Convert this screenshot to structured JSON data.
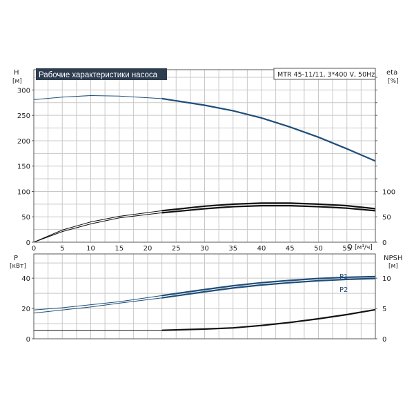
{
  "chart_data": [
    {
      "type": "line",
      "title": "Рабочие характеристики насоса",
      "info_box": "MTR 45-11/11, 3*400 V, 50Hz",
      "x_label": "Q",
      "x_unit": "[м³/ч]",
      "xlim": [
        0,
        60
      ],
      "x_ticks": [
        0,
        5,
        10,
        15,
        20,
        25,
        30,
        35,
        40,
        45,
        50,
        55
      ],
      "y_left_label": "H",
      "y_left_unit": "[м]",
      "ylim_left": [
        0,
        340
      ],
      "y_left_ticks": [
        0,
        50,
        100,
        150,
        200,
        250,
        300
      ],
      "y_right_label": "eta",
      "y_right_unit": "[%]",
      "ylim_right": [
        0,
        340
      ],
      "y_right_ticks": [
        0,
        50,
        100
      ],
      "grid": true,
      "series": [
        {
          "axis": "left",
          "color": "#1f4e79",
          "x": [
            0,
            5,
            10,
            15,
            22.5,
            30,
            35,
            40,
            45,
            50,
            55,
            60
          ],
          "y": [
            281,
            286,
            289,
            288,
            283,
            270,
            259,
            245,
            227,
            207,
            184,
            160
          ]
        },
        {
          "axis": "right",
          "color": "#111111",
          "x": [
            0,
            5,
            10,
            15,
            22.5,
            30,
            35,
            40,
            45,
            50,
            55,
            60
          ],
          "y": [
            0,
            24,
            40,
            51,
            62,
            71,
            75,
            77,
            77,
            75,
            72,
            66
          ]
        },
        {
          "axis": "right",
          "color": "#111111",
          "x": [
            0,
            5,
            10,
            15,
            22.5,
            30,
            35,
            40,
            45,
            50,
            55,
            60
          ],
          "y": [
            0,
            21,
            36,
            48,
            58,
            66,
            70,
            72,
            72,
            70,
            67,
            62
          ]
        }
      ]
    },
    {
      "type": "line",
      "y_left_label": "P",
      "y_left_unit": "[кВт]",
      "ylim_left": [
        0,
        56
      ],
      "y_left_ticks": [
        0,
        20,
        40
      ],
      "y_right_label": "NPSH",
      "y_right_unit": "[м]",
      "ylim_right": [
        0,
        14
      ],
      "y_right_ticks": [
        0,
        5,
        10
      ],
      "xlim": [
        0,
        60
      ],
      "grid": true,
      "series": [
        {
          "name": "P1",
          "axis": "left",
          "color": "#1f4e79",
          "x": [
            0,
            5,
            10,
            15,
            22.5,
            30,
            35,
            40,
            45,
            50,
            55,
            60
          ],
          "y": [
            19,
            20.5,
            22.5,
            24.5,
            28.5,
            32.5,
            35,
            37,
            38.5,
            39.8,
            40.6,
            41
          ]
        },
        {
          "name": "P2",
          "axis": "left",
          "color": "#1f4e79",
          "x": [
            0,
            5,
            10,
            15,
            22.5,
            30,
            35,
            40,
            45,
            50,
            55,
            60
          ],
          "y": [
            17,
            19,
            21,
            23.5,
            27,
            31,
            33.5,
            35.5,
            37,
            38.3,
            39.2,
            39.8
          ]
        },
        {
          "axis": "right",
          "color": "#111111",
          "x": [
            0,
            10,
            22.5,
            30,
            35,
            40,
            45,
            50,
            55,
            60
          ],
          "y": [
            1.4,
            1.4,
            1.4,
            1.6,
            1.8,
            2.2,
            2.7,
            3.3,
            4,
            4.8
          ]
        }
      ]
    }
  ]
}
